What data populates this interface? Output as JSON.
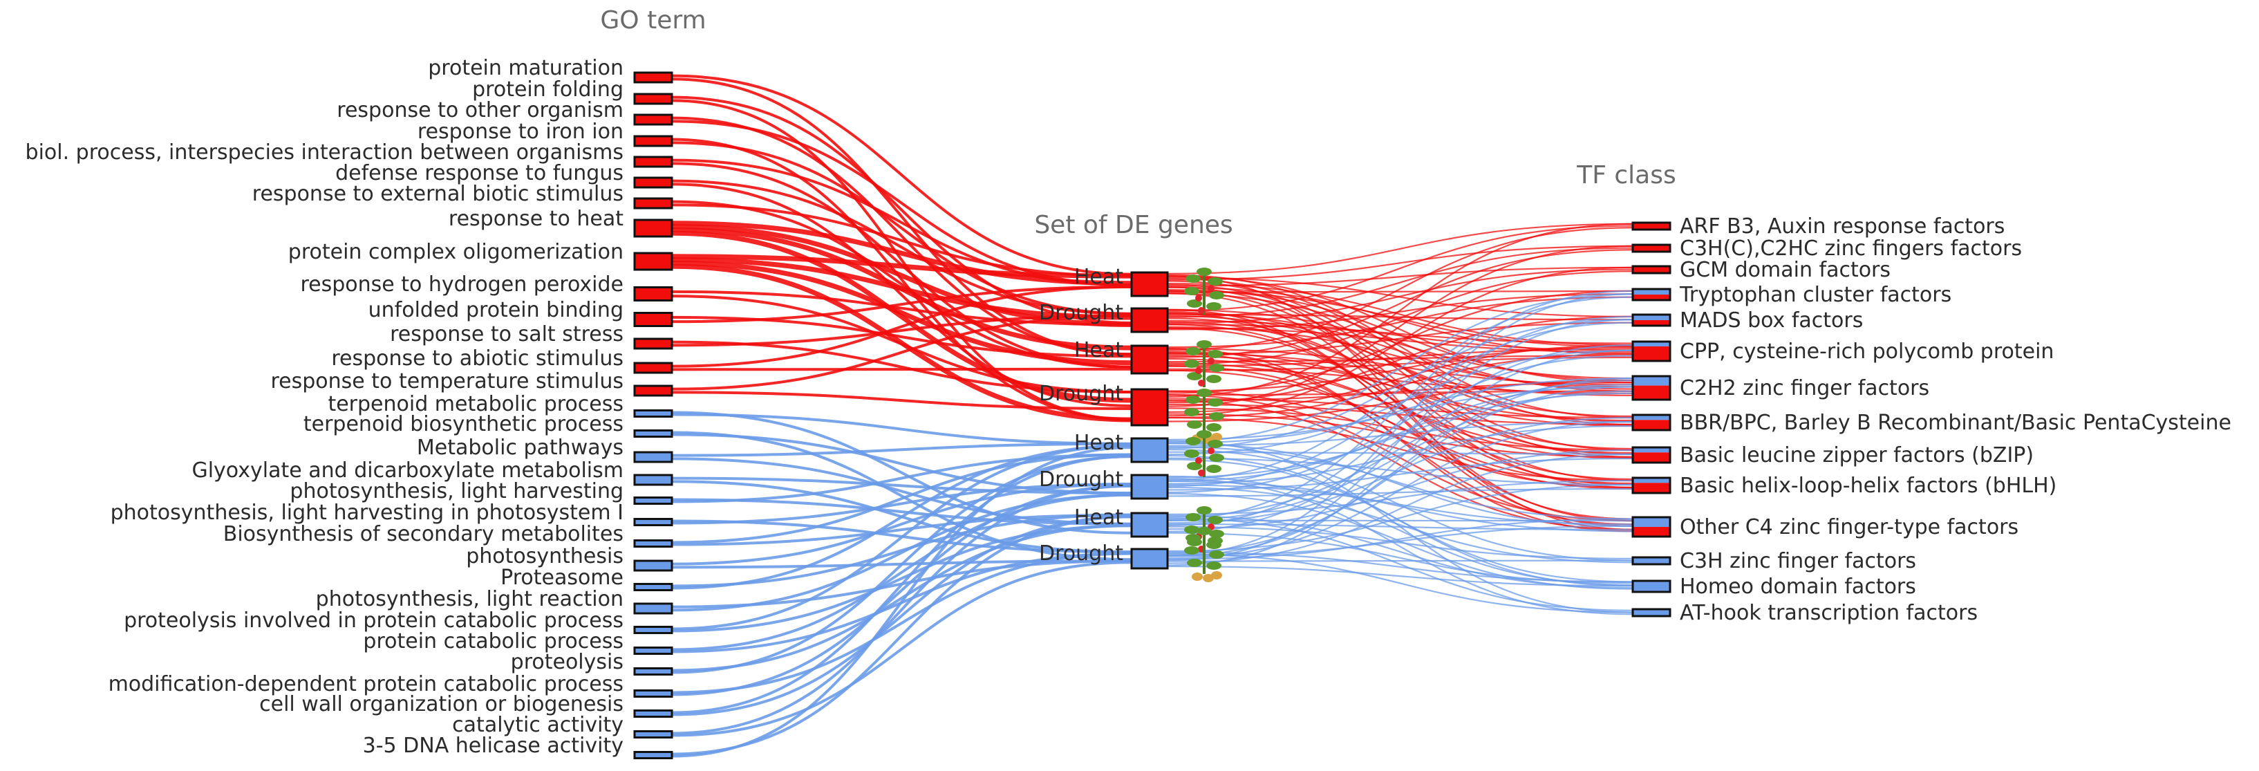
{
  "colors": {
    "up": "#f20d0d",
    "down": "#6a9be8",
    "stroke": "#111111",
    "title": "#6b6b6b"
  },
  "titles": {
    "go": "GO term",
    "set": "Set of DE genes",
    "tf": "TF class"
  },
  "chart_data": {
    "type": "sankey",
    "columns": [
      "GO term",
      "Set of DE genes",
      "TF class"
    ],
    "go_terms": [
      {
        "label": "protein maturation",
        "class": "up",
        "size": 2
      },
      {
        "label": "protein folding",
        "class": "up",
        "size": 2
      },
      {
        "label": "response to other organism",
        "class": "up",
        "size": 2
      },
      {
        "label": "response to iron ion",
        "class": "up",
        "size": 2
      },
      {
        "label": "biol. process, interspecies interaction between organisms",
        "class": "up",
        "size": 2
      },
      {
        "label": "defense response to fungus",
        "class": "up",
        "size": 2
      },
      {
        "label": "response to external biotic stimulus",
        "class": "up",
        "size": 2
      },
      {
        "label": "response to heat",
        "class": "up",
        "size": 4
      },
      {
        "label": "protein complex oligomerization",
        "class": "up",
        "size": 4
      },
      {
        "label": "response to hydrogen peroxide",
        "class": "up",
        "size": 3
      },
      {
        "label": "unfolded protein binding",
        "class": "up",
        "size": 3
      },
      {
        "label": "response to salt stress",
        "class": "up",
        "size": 2
      },
      {
        "label": "response to abiotic stimulus",
        "class": "up",
        "size": 2
      },
      {
        "label": "response to temperature stimulus",
        "class": "up",
        "size": 2
      },
      {
        "label": "terpenoid metabolic process",
        "class": "down",
        "size": 1
      },
      {
        "label": "terpenoid biosynthetic process",
        "class": "down",
        "size": 1
      },
      {
        "label": "Metabolic pathways",
        "class": "down",
        "size": 2
      },
      {
        "label": "Glyoxylate and dicarboxylate metabolism",
        "class": "down",
        "size": 2
      },
      {
        "label": "photosynthesis, light harvesting",
        "class": "down",
        "size": 1
      },
      {
        "label": "photosynthesis, light harvesting in photosystem I",
        "class": "down",
        "size": 1
      },
      {
        "label": "Biosynthesis of secondary metabolites",
        "class": "down",
        "size": 1
      },
      {
        "label": "photosynthesis",
        "class": "down",
        "size": 2
      },
      {
        "label": "Proteasome",
        "class": "down",
        "size": 1
      },
      {
        "label": "photosynthesis, light reaction",
        "class": "down",
        "size": 2
      },
      {
        "label": "proteolysis involved in protein catabolic process",
        "class": "down",
        "size": 1
      },
      {
        "label": "protein catabolic process",
        "class": "down",
        "size": 1
      },
      {
        "label": "proteolysis",
        "class": "down",
        "size": 1
      },
      {
        "label": "modification-dependent protein catabolic process",
        "class": "down",
        "size": 1
      },
      {
        "label": "cell wall organization or biogenesis",
        "class": "down",
        "size": 1
      },
      {
        "label": "catalytic activity",
        "class": "down",
        "size": 1
      },
      {
        "label": "3-5 DNA helicase activity",
        "class": "down",
        "size": 1
      }
    ],
    "gene_sets": [
      {
        "label": "Heat",
        "class": "up",
        "size": 4,
        "plant": "tomato-plant"
      },
      {
        "label": "Drought",
        "class": "up",
        "size": 4,
        "plant": "none"
      },
      {
        "label": "Heat",
        "class": "up",
        "size": 5,
        "plant": "tomato-plant"
      },
      {
        "label": "Drought",
        "class": "up",
        "size": 7,
        "plant": "potato-plant"
      },
      {
        "label": "Heat",
        "class": "down",
        "size": 4,
        "plant": "tomato-plant"
      },
      {
        "label": "Drought",
        "class": "down",
        "size": 4,
        "plant": "none"
      },
      {
        "label": "Heat",
        "class": "down",
        "size": 4,
        "plant": "potato-plant"
      },
      {
        "label": "Drought",
        "class": "down",
        "size": 3,
        "plant": "potato-tubers"
      }
    ],
    "tf_classes": [
      {
        "label": "ARF B3, Auxin response factors",
        "up": 1,
        "down": 0
      },
      {
        "label": "C3H(C),C2HC zinc fingers factors",
        "up": 1,
        "down": 0
      },
      {
        "label": "GCM domain factors",
        "up": 1,
        "down": 0
      },
      {
        "label": "Tryptophan cluster factors",
        "up": 1,
        "down": 1
      },
      {
        "label": "MADS box factors",
        "up": 1,
        "down": 1
      },
      {
        "label": "CPP, cysteine-rich polycomb protein",
        "up": 3,
        "down": 1
      },
      {
        "label": "C2H2 zinc finger factors",
        "up": 3,
        "down": 2
      },
      {
        "label": "BBR/BPC, Barley B Recombinant/Basic PentaCysteine",
        "up": 2,
        "down": 1
      },
      {
        "label": "Basic leucine zipper factors (bZIP)",
        "up": 2,
        "down": 1
      },
      {
        "label": "Basic helix-loop-helix factors (bHLH)",
        "up": 2,
        "down": 1
      },
      {
        "label": "Other C4 zinc finger-type factors",
        "up": 2,
        "down": 2
      },
      {
        "label": "C3H zinc finger factors",
        "up": 0,
        "down": 1
      },
      {
        "label": "Homeo domain factors",
        "up": 0,
        "down": 2
      },
      {
        "label": "AT-hook transcription factors",
        "up": 0,
        "down": 1
      }
    ]
  }
}
